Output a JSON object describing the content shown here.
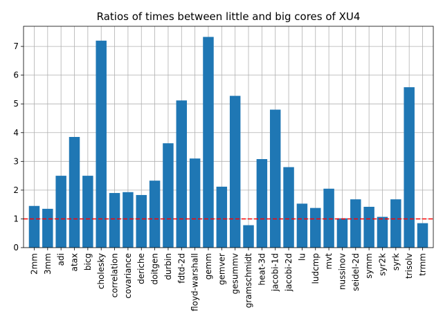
{
  "chart_data": {
    "type": "bar",
    "title": "Ratios of times between little and big cores of XU4",
    "xlabel": "",
    "ylabel": "",
    "categories": [
      "2mm",
      "3mm",
      "adi",
      "atax",
      "bicg",
      "cholesky",
      "correlation",
      "covariance",
      "deriche",
      "doitgen",
      "durbin",
      "fdtd-2d",
      "floyd-warshall",
      "gemm",
      "gemver",
      "gesummv",
      "gramschmidt",
      "heat-3d",
      "jacobi-1d",
      "jacobi-2d",
      "lu",
      "ludcmp",
      "mvt",
      "nussinov",
      "seidel-2d",
      "symm",
      "syr2k",
      "syrk",
      "trisolv",
      "trmm"
    ],
    "values": [
      1.45,
      1.35,
      2.5,
      3.85,
      2.5,
      7.2,
      1.9,
      1.93,
      1.83,
      2.33,
      3.63,
      5.12,
      3.1,
      7.33,
      2.12,
      5.28,
      0.78,
      3.08,
      4.8,
      2.8,
      1.53,
      1.38,
      2.05,
      1.02,
      1.68,
      1.42,
      1.07,
      1.68,
      5.58,
      0.85
    ],
    "ylim": [
      0,
      7.7
    ],
    "yticks": [
      0,
      1,
      2,
      3,
      4,
      5,
      6,
      7
    ],
    "grid": true,
    "bar_color": "#1f77b4",
    "reference_line": {
      "value": 1,
      "color": "#ff0000",
      "style": "dashed"
    }
  }
}
